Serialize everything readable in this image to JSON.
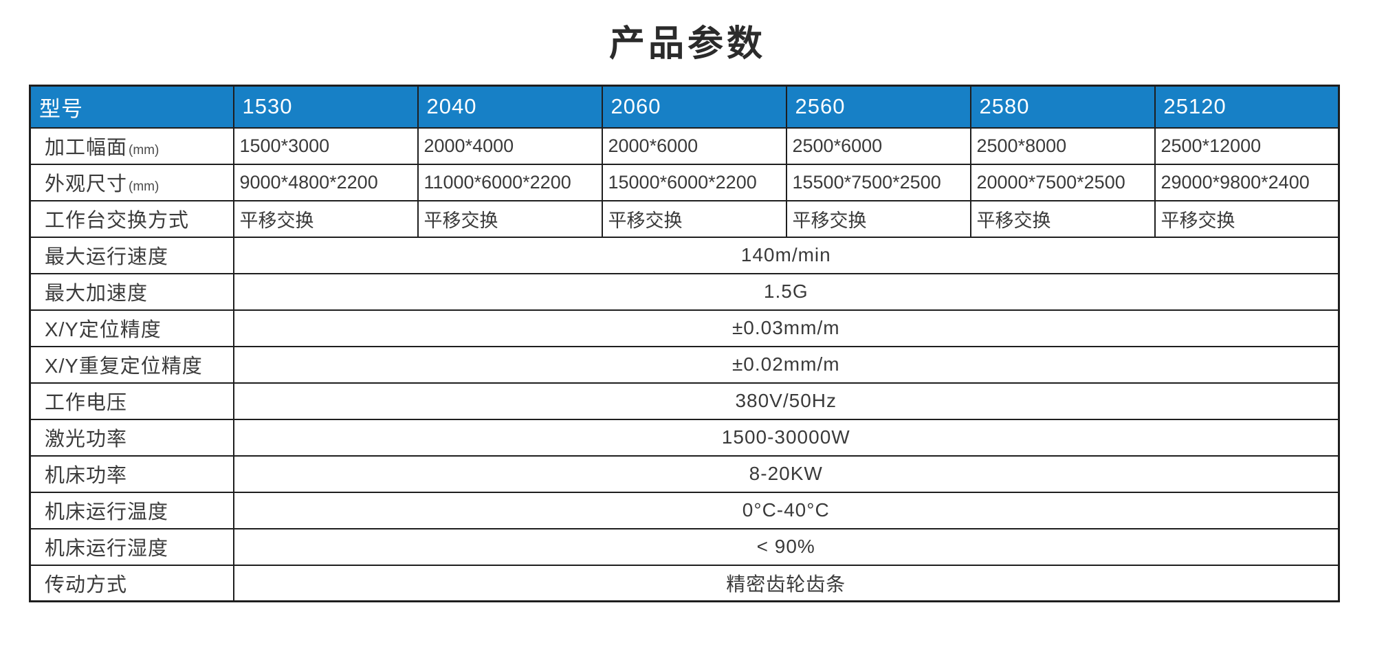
{
  "title": "产品参数",
  "accent_color": "#1780c6",
  "border_color": "#1e1e1e",
  "header_text_color": "#ffffff",
  "body_text_color": "#3a3a3a",
  "table": {
    "header": {
      "label": "型号",
      "models": [
        "1530",
        "2040",
        "2060",
        "2560",
        "2580",
        "25120"
      ]
    },
    "per_model_rows": [
      {
        "label": "加工幅面",
        "label_suffix": "(mm)",
        "values": [
          "1500*3000",
          "2000*4000",
          "2000*6000",
          "2500*6000",
          "2500*8000",
          "2500*12000"
        ]
      },
      {
        "label": "外观尺寸",
        "label_suffix": "(mm)",
        "values": [
          "9000*4800*2200",
          "11000*6000*2200",
          "15000*6000*2200",
          "15500*7500*2500",
          "20000*7500*2500",
          "29000*9800*2400"
        ]
      },
      {
        "label": "工作台交换方式",
        "label_suffix": "",
        "values": [
          "平移交换",
          "平移交换",
          "平移交换",
          "平移交换",
          "平移交换",
          "平移交换"
        ]
      }
    ],
    "spanning_rows": [
      {
        "label": "最大运行速度",
        "value": "140m/min"
      },
      {
        "label": "最大加速度",
        "value": "1.5G"
      },
      {
        "label": "X/Y定位精度",
        "value": "±0.03mm/m"
      },
      {
        "label": "X/Y重复定位精度",
        "value": "±0.02mm/m"
      },
      {
        "label": "工作电压",
        "value": "380V/50Hz"
      },
      {
        "label": "激光功率",
        "value": "1500-30000W"
      },
      {
        "label": "机床功率",
        "value": "8-20KW"
      },
      {
        "label": "机床运行温度",
        "value": "0°C-40°C"
      },
      {
        "label": "机床运行湿度",
        "value": "< 90%"
      },
      {
        "label": "传动方式",
        "value": "精密齿轮齿条"
      }
    ]
  }
}
